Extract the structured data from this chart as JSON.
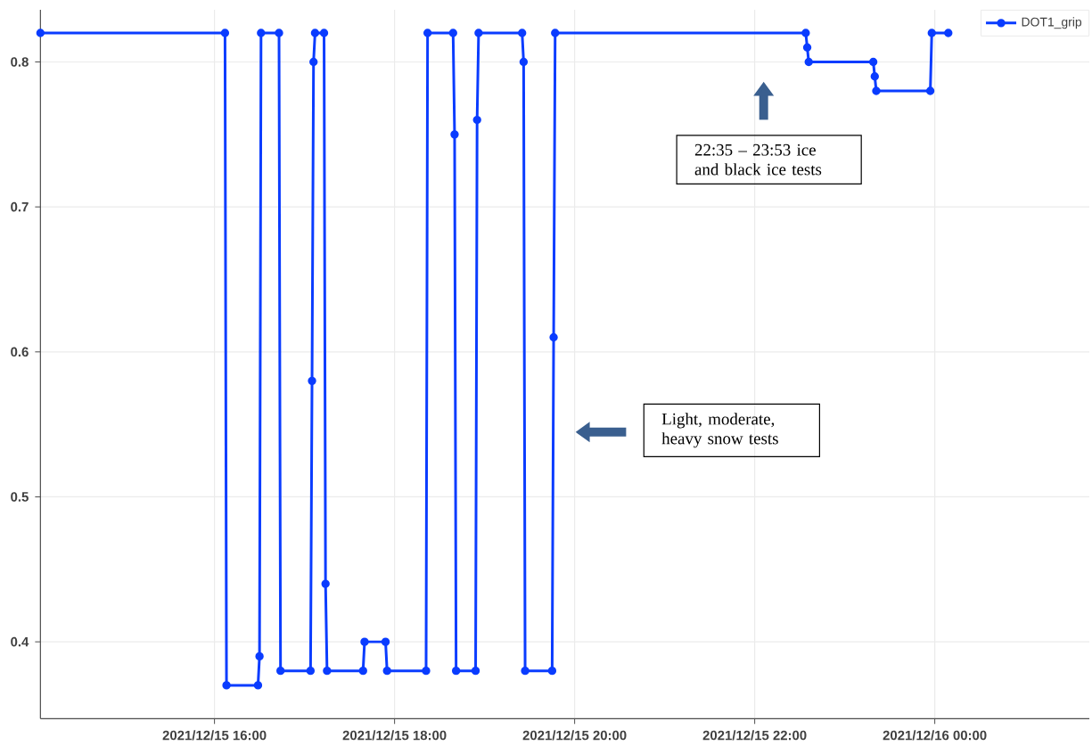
{
  "chart_data": {
    "type": "line",
    "xlim": [
      "2021-12-15T14:04",
      "2021-12-16T01:43"
    ],
    "ylim": [
      0.347,
      0.836
    ],
    "xticks": [
      {
        "value": "2021-12-15T16:00",
        "label": "2021/12/15 16:00"
      },
      {
        "value": "2021-12-15T18:00",
        "label": "2021/12/15 18:00"
      },
      {
        "value": "2021-12-15T20:00",
        "label": "2021/12/15 20:00"
      },
      {
        "value": "2021-12-15T22:00",
        "label": "2021/12/15 22:00"
      },
      {
        "value": "2021-12-16T00:00",
        "label": "2021/12/16 00:00"
      }
    ],
    "yticks": [
      0.4,
      0.5,
      0.6,
      0.7,
      0.8
    ],
    "grid": true,
    "legend": "top right",
    "marker": "circle",
    "line_style": "solid",
    "series": [
      {
        "name": "DOT1_grip",
        "color": "#0a3cff",
        "x": [
          "2021-12-15T14:04",
          "2021-12-15T16:07",
          "2021-12-15T16:08",
          "2021-12-15T16:29",
          "2021-12-15T16:30",
          "2021-12-15T16:31",
          "2021-12-15T16:43",
          "2021-12-15T16:44",
          "2021-12-15T17:04",
          "2021-12-15T17:05",
          "2021-12-15T17:06",
          "2021-12-15T17:07",
          "2021-12-15T17:13",
          "2021-12-15T17:14",
          "2021-12-15T17:15",
          "2021-12-15T17:39",
          "2021-12-15T17:40",
          "2021-12-15T17:54",
          "2021-12-15T17:55",
          "2021-12-15T18:21",
          "2021-12-15T18:22",
          "2021-12-15T18:39",
          "2021-12-15T18:40",
          "2021-12-15T18:41",
          "2021-12-15T18:54",
          "2021-12-15T18:55",
          "2021-12-15T18:56",
          "2021-12-15T19:25",
          "2021-12-15T19:26",
          "2021-12-15T19:27",
          "2021-12-15T19:45",
          "2021-12-15T19:46",
          "2021-12-15T19:47",
          "2021-12-15T22:34",
          "2021-12-15T22:35",
          "2021-12-15T22:36",
          "2021-12-15T23:19",
          "2021-12-15T23:20",
          "2021-12-15T23:21",
          "2021-12-15T23:57",
          "2021-12-15T23:58",
          "2021-12-16T00:09"
        ],
        "values": [
          0.82,
          0.82,
          0.37,
          0.37,
          0.39,
          0.82,
          0.82,
          0.38,
          0.38,
          0.58,
          0.8,
          0.82,
          0.82,
          0.44,
          0.38,
          0.38,
          0.4,
          0.4,
          0.38,
          0.38,
          0.82,
          0.82,
          0.75,
          0.38,
          0.38,
          0.76,
          0.82,
          0.82,
          0.8,
          0.38,
          0.38,
          0.61,
          0.82,
          0.82,
          0.81,
          0.8,
          0.8,
          0.79,
          0.78,
          0.78,
          0.82,
          0.82
        ]
      }
    ],
    "annotations": [
      "22:35 – 23:53 ice and black ice tests",
      "Light, moderate, heavy snow tests"
    ]
  }
}
